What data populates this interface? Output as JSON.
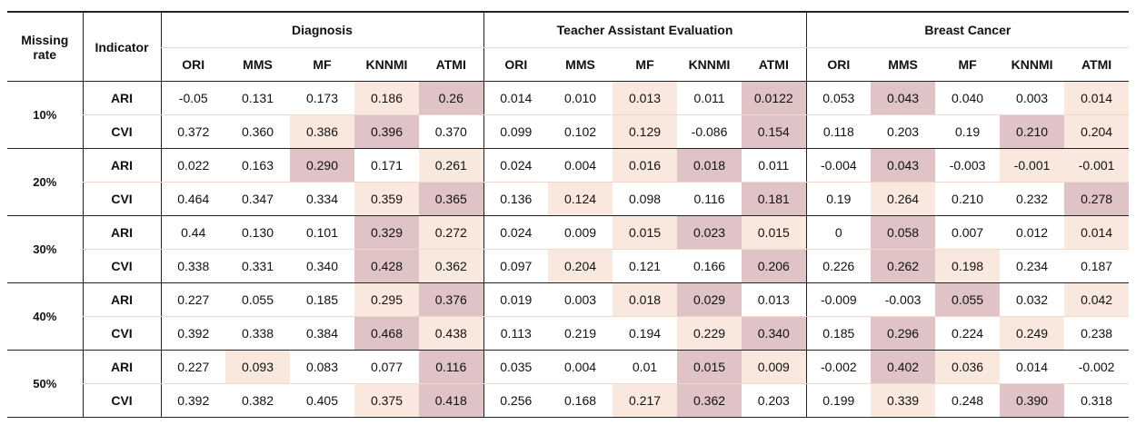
{
  "headers": {
    "missing_rate": "Missing rate",
    "indicator": "Indicator",
    "datasets": [
      "Diagnosis",
      "Teacher Assistant Evaluation",
      "Breast Cancer"
    ],
    "methods": [
      "ORI",
      "MMS",
      "MF",
      "KNNMI",
      "ATMI"
    ]
  },
  "highlight_colors": {
    "light": "#f9e8dd",
    "dark": "#dfc3c7"
  },
  "groups": [
    {
      "rate": "10%",
      "rows": [
        {
          "indicator": "ARI",
          "cells": [
            {
              "v": "-0.05",
              "h": 0
            },
            {
              "v": "0.131",
              "h": 0
            },
            {
              "v": "0.173",
              "h": 0
            },
            {
              "v": "0.186",
              "h": 1
            },
            {
              "v": "0.26",
              "h": 2
            },
            {
              "v": "0.014",
              "h": 0
            },
            {
              "v": "0.010",
              "h": 0
            },
            {
              "v": "0.013",
              "h": 1
            },
            {
              "v": "0.011",
              "h": 0
            },
            {
              "v": "0.0122",
              "h": 2
            },
            {
              "v": "0.053",
              "h": 0
            },
            {
              "v": "0.043",
              "h": 2
            },
            {
              "v": "0.040",
              "h": 0
            },
            {
              "v": "0.003",
              "h": 0
            },
            {
              "v": "0.014",
              "h": 1
            }
          ]
        },
        {
          "indicator": "CVI",
          "cells": [
            {
              "v": "0.372",
              "h": 0
            },
            {
              "v": "0.360",
              "h": 0
            },
            {
              "v": "0.386",
              "h": 1
            },
            {
              "v": "0.396",
              "h": 2
            },
            {
              "v": "0.370",
              "h": 0
            },
            {
              "v": "0.099",
              "h": 0
            },
            {
              "v": "0.102",
              "h": 0
            },
            {
              "v": "0.129",
              "h": 1
            },
            {
              "v": "-0.086",
              "h": 0
            },
            {
              "v": "0.154",
              "h": 2
            },
            {
              "v": "0.118",
              "h": 0
            },
            {
              "v": "0.203",
              "h": 0
            },
            {
              "v": "0.19",
              "h": 0
            },
            {
              "v": "0.210",
              "h": 2
            },
            {
              "v": "0.204",
              "h": 1
            }
          ]
        }
      ]
    },
    {
      "rate": "20%",
      "rows": [
        {
          "indicator": "ARI",
          "cells": [
            {
              "v": "0.022",
              "h": 0
            },
            {
              "v": "0.163",
              "h": 0
            },
            {
              "v": "0.290",
              "h": 2
            },
            {
              "v": "0.171",
              "h": 0
            },
            {
              "v": "0.261",
              "h": 1
            },
            {
              "v": "0.024",
              "h": 0
            },
            {
              "v": "0.004",
              "h": 0
            },
            {
              "v": "0.016",
              "h": 1
            },
            {
              "v": "0.018",
              "h": 2
            },
            {
              "v": "0.011",
              "h": 0
            },
            {
              "v": "-0.004",
              "h": 0
            },
            {
              "v": "0.043",
              "h": 2
            },
            {
              "v": "-0.003",
              "h": 0
            },
            {
              "v": "-0.001",
              "h": 1
            },
            {
              "v": "-0.001",
              "h": 1
            }
          ]
        },
        {
          "indicator": "CVI",
          "cells": [
            {
              "v": "0.464",
              "h": 0
            },
            {
              "v": "0.347",
              "h": 0
            },
            {
              "v": "0.334",
              "h": 0
            },
            {
              "v": "0.359",
              "h": 1
            },
            {
              "v": "0.365",
              "h": 2
            },
            {
              "v": "0.136",
              "h": 0
            },
            {
              "v": "0.124",
              "h": 1
            },
            {
              "v": "0.098",
              "h": 0
            },
            {
              "v": "0.116",
              "h": 0
            },
            {
              "v": "0.181",
              "h": 2
            },
            {
              "v": "0.19",
              "h": 0
            },
            {
              "v": "0.264",
              "h": 1
            },
            {
              "v": "0.210",
              "h": 0
            },
            {
              "v": "0.232",
              "h": 0
            },
            {
              "v": "0.278",
              "h": 2
            }
          ]
        }
      ]
    },
    {
      "rate": "30%",
      "rows": [
        {
          "indicator": "ARI",
          "cells": [
            {
              "v": "0.44",
              "h": 0
            },
            {
              "v": "0.130",
              "h": 0
            },
            {
              "v": "0.101",
              "h": 0
            },
            {
              "v": "0.329",
              "h": 2
            },
            {
              "v": "0.272",
              "h": 1
            },
            {
              "v": "0.024",
              "h": 0
            },
            {
              "v": "0.009",
              "h": 0
            },
            {
              "v": "0.015",
              "h": 1
            },
            {
              "v": "0.023",
              "h": 2
            },
            {
              "v": "0.015",
              "h": 1
            },
            {
              "v": "0",
              "h": 0
            },
            {
              "v": "0.058",
              "h": 2
            },
            {
              "v": "0.007",
              "h": 0
            },
            {
              "v": "0.012",
              "h": 0
            },
            {
              "v": "0.014",
              "h": 1
            }
          ]
        },
        {
          "indicator": "CVI",
          "cells": [
            {
              "v": "0.338",
              "h": 0
            },
            {
              "v": "0.331",
              "h": 0
            },
            {
              "v": "0.340",
              "h": 0
            },
            {
              "v": "0.428",
              "h": 2
            },
            {
              "v": "0.362",
              "h": 1
            },
            {
              "v": "0.097",
              "h": 0
            },
            {
              "v": "0.204",
              "h": 1
            },
            {
              "v": "0.121",
              "h": 0
            },
            {
              "v": "0.166",
              "h": 0
            },
            {
              "v": "0.206",
              "h": 2
            },
            {
              "v": "0.226",
              "h": 0
            },
            {
              "v": "0.262",
              "h": 2
            },
            {
              "v": "0.198",
              "h": 1
            },
            {
              "v": "0.234",
              "h": 0
            },
            {
              "v": "0.187",
              "h": 0
            }
          ]
        }
      ]
    },
    {
      "rate": "40%",
      "rows": [
        {
          "indicator": "ARI",
          "cells": [
            {
              "v": "0.227",
              "h": 0
            },
            {
              "v": "0.055",
              "h": 0
            },
            {
              "v": "0.185",
              "h": 0
            },
            {
              "v": "0.295",
              "h": 1
            },
            {
              "v": "0.376",
              "h": 2
            },
            {
              "v": "0.019",
              "h": 0
            },
            {
              "v": "0.003",
              "h": 0
            },
            {
              "v": "0.018",
              "h": 1
            },
            {
              "v": "0.029",
              "h": 2
            },
            {
              "v": "0.013",
              "h": 0
            },
            {
              "v": "-0.009",
              "h": 0
            },
            {
              "v": "-0.003",
              "h": 0
            },
            {
              "v": "0.055",
              "h": 2
            },
            {
              "v": "0.032",
              "h": 0
            },
            {
              "v": "0.042",
              "h": 1
            }
          ]
        },
        {
          "indicator": "CVI",
          "cells": [
            {
              "v": "0.392",
              "h": 0
            },
            {
              "v": "0.338",
              "h": 0
            },
            {
              "v": "0.384",
              "h": 0
            },
            {
              "v": "0.468",
              "h": 2
            },
            {
              "v": "0.438",
              "h": 1
            },
            {
              "v": "0.113",
              "h": 0
            },
            {
              "v": "0.219",
              "h": 0
            },
            {
              "v": "0.194",
              "h": 0
            },
            {
              "v": "0.229",
              "h": 1
            },
            {
              "v": "0.340",
              "h": 2
            },
            {
              "v": "0.185",
              "h": 0
            },
            {
              "v": "0.296",
              "h": 2
            },
            {
              "v": "0.224",
              "h": 0
            },
            {
              "v": "0.249",
              "h": 1
            },
            {
              "v": "0.238",
              "h": 0
            }
          ]
        }
      ]
    },
    {
      "rate": "50%",
      "rows": [
        {
          "indicator": "ARI",
          "cells": [
            {
              "v": "0.227",
              "h": 0
            },
            {
              "v": "0.093",
              "h": 1
            },
            {
              "v": "0.083",
              "h": 0
            },
            {
              "v": "0.077",
              "h": 0
            },
            {
              "v": "0.116",
              "h": 2
            },
            {
              "v": "0.035",
              "h": 0
            },
            {
              "v": "0.004",
              "h": 0
            },
            {
              "v": "0.01",
              "h": 0
            },
            {
              "v": "0.015",
              "h": 2
            },
            {
              "v": "0.009",
              "h": 1
            },
            {
              "v": "-0.002",
              "h": 0
            },
            {
              "v": "0.402",
              "h": 2
            },
            {
              "v": "0.036",
              "h": 1
            },
            {
              "v": "0.014",
              "h": 0
            },
            {
              "v": "-0.002",
              "h": 0
            }
          ]
        },
        {
          "indicator": "CVI",
          "cells": [
            {
              "v": "0.392",
              "h": 0
            },
            {
              "v": "0.382",
              "h": 0
            },
            {
              "v": "0.405",
              "h": 0
            },
            {
              "v": "0.375",
              "h": 1
            },
            {
              "v": "0.418",
              "h": 2
            },
            {
              "v": "0.256",
              "h": 0
            },
            {
              "v": "0.168",
              "h": 0
            },
            {
              "v": "0.217",
              "h": 1
            },
            {
              "v": "0.362",
              "h": 2
            },
            {
              "v": "0.203",
              "h": 0
            },
            {
              "v": "0.199",
              "h": 0
            },
            {
              "v": "0.339",
              "h": 1
            },
            {
              "v": "0.248",
              "h": 0
            },
            {
              "v": "0.390",
              "h": 2
            },
            {
              "v": "0.318",
              "h": 0
            }
          ]
        }
      ]
    }
  ]
}
